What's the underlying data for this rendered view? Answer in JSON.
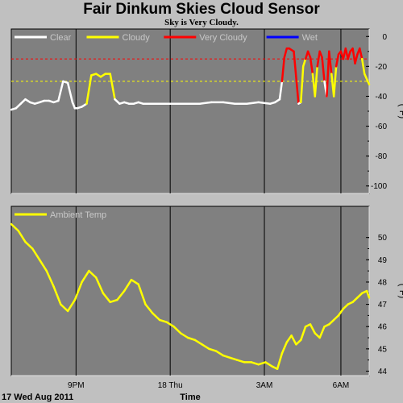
{
  "title": "Fair Dinkum Skies Cloud Sensor",
  "subtitle": "Sky is Very Cloudy.",
  "footer": {
    "date": "17 Wed Aug 2011",
    "xlabel": "Time"
  },
  "colors": {
    "clear": "#ffffff",
    "cloudy": "#ffff00",
    "very_cloudy": "#ff0000",
    "wet": "#0000ff",
    "panel_bg": "#808080",
    "page_bg": "#c0c0c0"
  },
  "chart_data": [
    {
      "type": "line",
      "name": "sky-temperature",
      "ylabel": "(°F)",
      "ylim": [
        -105,
        5
      ],
      "yticks": [
        0,
        -20,
        -40,
        -60,
        -80,
        -100
      ],
      "threshold_lines": [
        {
          "value": -15,
          "color": "#ff0000"
        },
        {
          "value": -30,
          "color": "#ffff00"
        }
      ],
      "legend": [
        {
          "label": "Clear",
          "color": "#ffffff"
        },
        {
          "label": "Cloudy",
          "color": "#ffff00"
        },
        {
          "label": "Very Cloudy",
          "color": "#ff0000"
        },
        {
          "label": "Wet",
          "color": "#0000ff"
        }
      ],
      "x_hours": [
        0,
        0.2,
        0.4,
        0.6,
        0.8,
        1.0,
        1.2,
        1.4,
        1.6,
        1.8,
        2.0,
        2.2,
        2.4,
        2.6,
        2.7,
        2.8,
        3.0,
        3.2,
        3.4,
        3.6,
        3.8,
        4.0,
        4.2,
        4.4,
        4.6,
        4.8,
        5.0,
        5.2,
        5.4,
        5.6,
        5.8,
        6.0,
        6.5,
        7.0,
        7.5,
        8.0,
        8.5,
        9.0,
        9.5,
        10.0,
        10.5,
        11.0,
        11.2,
        11.4,
        11.5,
        11.6,
        11.7,
        11.8,
        12.0,
        12.2,
        12.3,
        12.4,
        12.5,
        12.6,
        12.7,
        12.8,
        12.9,
        13.0,
        13.1,
        13.2,
        13.3,
        13.4,
        13.5,
        13.6,
        13.7,
        13.8,
        13.9,
        14.0,
        14.1,
        14.2,
        14.3,
        14.4,
        14.5,
        14.6,
        14.7,
        14.8,
        14.9,
        15.0,
        15.2
      ],
      "values": [
        -49,
        -48,
        -45,
        -42,
        -44,
        -45,
        -44,
        -43,
        -43,
        -44,
        -43,
        -30,
        -31,
        -44,
        -48,
        -48,
        -47,
        -45,
        -26,
        -25,
        -27,
        -25,
        -25,
        -42,
        -45,
        -44,
        -45,
        -45,
        -44,
        -45,
        -45,
        -45,
        -45,
        -45,
        -45,
        -45,
        -44,
        -44,
        -45,
        -45,
        -44,
        -45,
        -44,
        -42,
        -30,
        -14,
        -8,
        -8,
        -10,
        -45,
        -44,
        -20,
        -15,
        -10,
        -14,
        -25,
        -40,
        -20,
        -10,
        -14,
        -30,
        -40,
        -10,
        -25,
        -40,
        -20,
        -12,
        -10,
        -15,
        -8,
        -15,
        -10,
        -8,
        -18,
        -12,
        -8,
        -15,
        -25,
        -32
      ],
      "x_ticks": [
        {
          "hour": 2.75,
          "label": "9PM"
        },
        {
          "hour": 6.75,
          "label": "18 Thu"
        },
        {
          "hour": 10.75,
          "label": "3AM"
        },
        {
          "hour": 14.0,
          "label": "6AM"
        }
      ]
    },
    {
      "type": "line",
      "name": "ambient-temperature",
      "ylabel": "(°F)",
      "ylim": [
        43.8,
        51.4
      ],
      "yticks": [
        50,
        49,
        48,
        47,
        46,
        45,
        44
      ],
      "legend": [
        {
          "label": "Ambient Temp",
          "color": "#ffff00"
        }
      ],
      "x_hours": [
        0,
        0.3,
        0.6,
        0.9,
        1.2,
        1.5,
        1.8,
        2.1,
        2.4,
        2.7,
        3.0,
        3.3,
        3.6,
        3.9,
        4.2,
        4.5,
        4.8,
        5.1,
        5.4,
        5.7,
        6.0,
        6.3,
        6.6,
        6.9,
        7.2,
        7.5,
        7.8,
        8.1,
        8.4,
        8.7,
        9.0,
        9.3,
        9.6,
        9.9,
        10.2,
        10.5,
        10.8,
        11.1,
        11.3,
        11.5,
        11.7,
        11.9,
        12.1,
        12.3,
        12.5,
        12.7,
        12.9,
        13.1,
        13.3,
        13.5,
        13.7,
        13.9,
        14.1,
        14.3,
        14.5,
        14.7,
        14.9,
        15.1,
        15.2
      ],
      "values": [
        50.6,
        50.3,
        49.8,
        49.5,
        49.0,
        48.5,
        47.8,
        47.0,
        46.7,
        47.2,
        48.0,
        48.5,
        48.2,
        47.5,
        47.1,
        47.2,
        47.6,
        48.1,
        47.9,
        47.0,
        46.6,
        46.3,
        46.2,
        46.0,
        45.7,
        45.5,
        45.4,
        45.2,
        45.0,
        44.9,
        44.7,
        44.6,
        44.5,
        44.4,
        44.4,
        44.3,
        44.4,
        44.2,
        44.1,
        44.8,
        45.3,
        45.6,
        45.2,
        45.4,
        46.0,
        46.1,
        45.7,
        45.5,
        46.0,
        46.1,
        46.3,
        46.5,
        46.8,
        47.0,
        47.1,
        47.3,
        47.5,
        47.6,
        47.3
      ]
    }
  ]
}
